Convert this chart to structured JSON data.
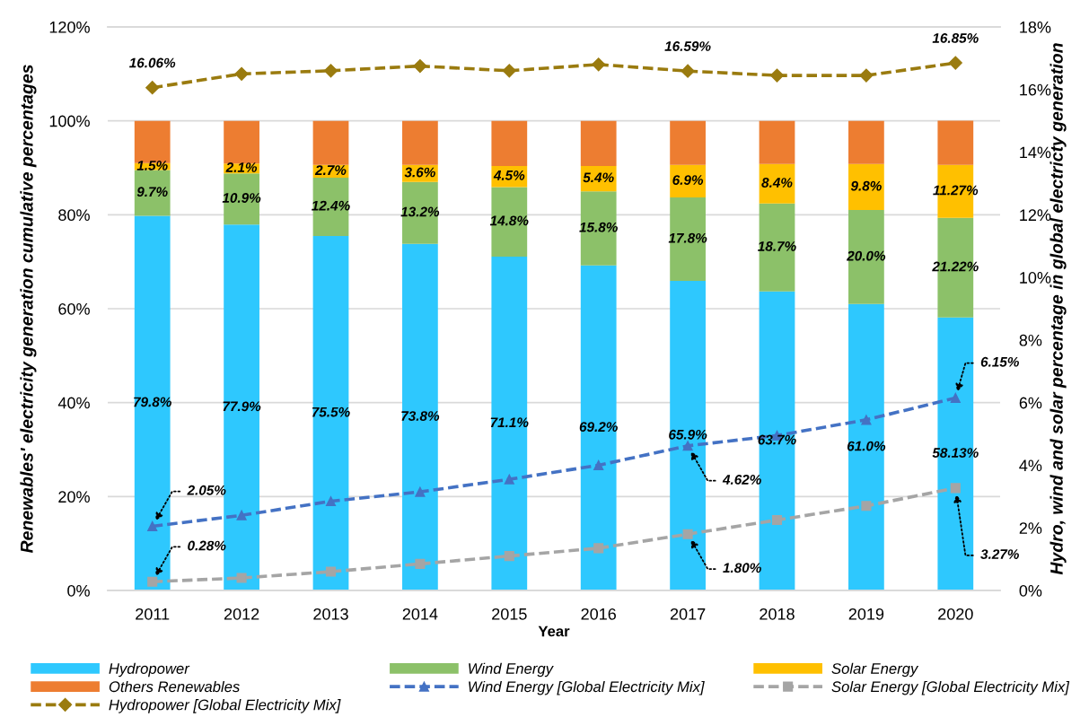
{
  "chart_data": {
    "type": "bar",
    "stacked": true,
    "categories": [
      "2011",
      "2012",
      "2013",
      "2014",
      "2015",
      "2016",
      "2017",
      "2018",
      "2019",
      "2020"
    ],
    "xlabel": "Year",
    "ylabel": "Renewables' electricity generation cumulative percentages",
    "y2label": "Hydro, wind and solar percentage in global electricty generation",
    "ylim": [
      0,
      120
    ],
    "yticks": [
      {
        "value": 0,
        "label": "0%"
      },
      {
        "value": 20,
        "label": "20%"
      },
      {
        "value": 40,
        "label": "40%"
      },
      {
        "value": 60,
        "label": "60%"
      },
      {
        "value": 80,
        "label": "80%"
      },
      {
        "value": 100,
        "label": "100%"
      },
      {
        "value": 120,
        "label": "120%"
      }
    ],
    "y2lim": [
      0,
      18
    ],
    "y2ticks": [
      {
        "value": 0,
        "label": "0%"
      },
      {
        "value": 2,
        "label": "2%"
      },
      {
        "value": 4,
        "label": "4%"
      },
      {
        "value": 6,
        "label": "6%"
      },
      {
        "value": 8,
        "label": "8%"
      },
      {
        "value": 10,
        "label": "10%"
      },
      {
        "value": 12,
        "label": "12%"
      },
      {
        "value": 14,
        "label": "14%"
      },
      {
        "value": 16,
        "label": "16%"
      },
      {
        "value": 18,
        "label": "18%"
      }
    ],
    "grid": "y",
    "legend": "bottom",
    "series": [
      {
        "name": "Hydropower",
        "color": "#2EC8FE",
        "values": [
          79.8,
          77.9,
          75.5,
          73.8,
          71.1,
          69.2,
          65.9,
          63.7,
          61.0,
          58.13
        ],
        "value_labels": [
          "79.8%",
          "77.9%",
          "75.5%",
          "73.8%",
          "71.1%",
          "69.2%",
          "65.9%",
          "63.7%",
          "61.0%",
          "58.13%"
        ]
      },
      {
        "name": "Wind Energy",
        "color": "#8CC169",
        "values": [
          9.7,
          10.9,
          12.4,
          13.2,
          14.8,
          15.8,
          17.8,
          18.7,
          20.0,
          21.22
        ],
        "value_labels": [
          "9.7%",
          "10.9%",
          "12.4%",
          "13.2%",
          "14.8%",
          "15.8%",
          "17.8%",
          "18.7%",
          "20.0%",
          "21.22%"
        ]
      },
      {
        "name": "Solar Energy",
        "color": "#FFC000",
        "values": [
          1.5,
          2.1,
          2.7,
          3.6,
          4.5,
          5.4,
          6.9,
          8.4,
          9.8,
          11.27
        ],
        "value_labels": [
          "1.5%",
          "2.1%",
          "2.7%",
          "3.6%",
          "4.5%",
          "5.4%",
          "6.9%",
          "8.4%",
          "9.8%",
          "11.27%"
        ]
      },
      {
        "name": "Others Renewables",
        "color": "#ED7D31",
        "values": [
          9.0,
          9.1,
          9.4,
          9.4,
          9.6,
          9.6,
          9.4,
          9.2,
          9.2,
          9.4
        ]
      },
      {
        "name": "Wind Energy [Global Electricity Mix]",
        "type": "line",
        "axis": "y2",
        "color": "#4472C4",
        "marker": "triangle",
        "line_style": "dashed",
        "values": [
          2.05,
          2.4,
          2.85,
          3.15,
          3.55,
          4.0,
          4.62,
          4.95,
          5.45,
          6.15
        ],
        "value_labels": [
          "2.05%",
          null,
          null,
          null,
          null,
          null,
          "4.62%",
          null,
          null,
          "6.15%"
        ]
      },
      {
        "name": "Solar Energy [Global Electricity Mix]",
        "type": "line",
        "axis": "y2",
        "color": "#A5A5A5",
        "marker": "square",
        "line_style": "dashed",
        "values": [
          0.28,
          0.4,
          0.6,
          0.85,
          1.1,
          1.35,
          1.8,
          2.25,
          2.7,
          3.27
        ],
        "value_labels": [
          "0.28%",
          null,
          null,
          null,
          null,
          null,
          "1.80%",
          null,
          null,
          "3.27%"
        ]
      },
      {
        "name": "Hydropower [Global Electricity Mix]",
        "type": "line",
        "axis": "y2",
        "color": "#9A7B0F",
        "marker": "diamond",
        "line_style": "dashed",
        "values": [
          16.06,
          16.5,
          16.6,
          16.75,
          16.6,
          16.8,
          16.59,
          16.45,
          16.45,
          16.85
        ],
        "value_labels": [
          "16.06%",
          null,
          null,
          null,
          null,
          null,
          "16.59%",
          null,
          null,
          "16.85%"
        ]
      }
    ]
  }
}
